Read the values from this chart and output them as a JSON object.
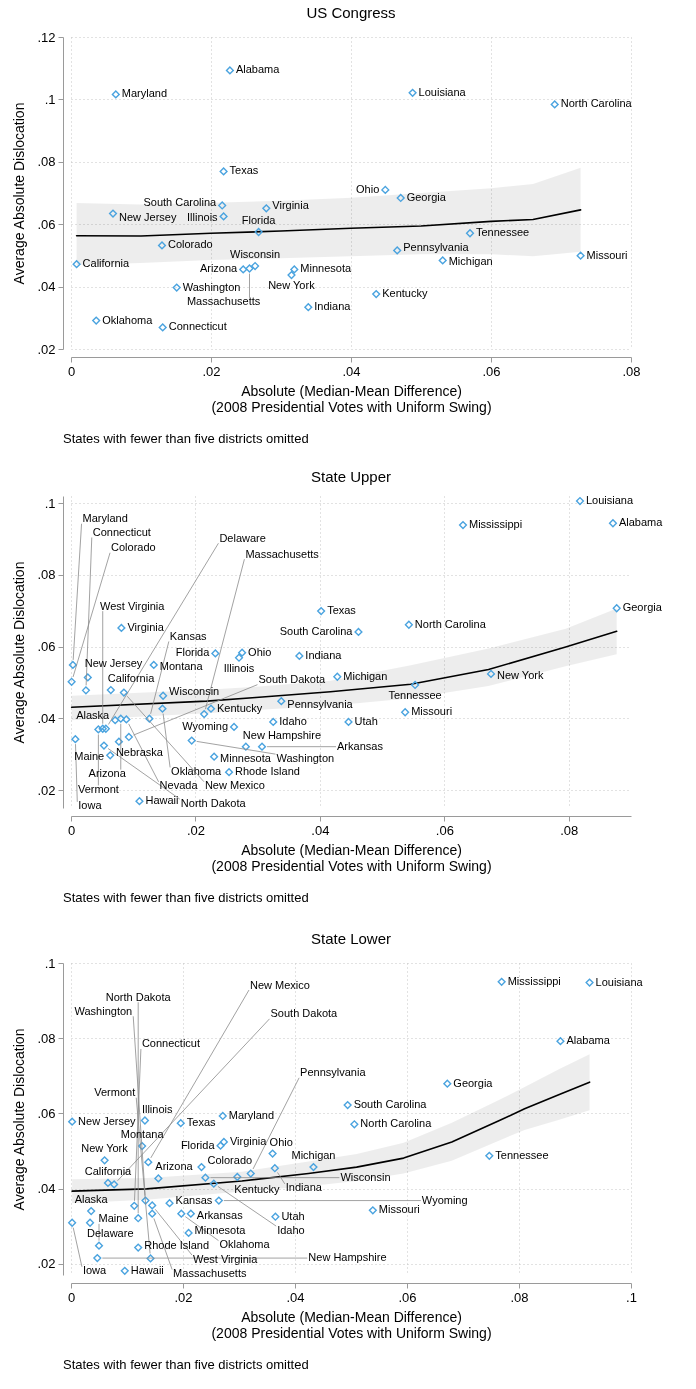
{
  "chart_data": [
    {
      "type": "scatter",
      "title": "US Congress",
      "xlabel": "Absolute (Median-Mean Difference)\n(2008 Presidential Votes with Uniform Swing)",
      "ylabel": "Average Absolute Dislocation",
      "xlim": [
        0,
        0.08
      ],
      "ylim": [
        0.02,
        0.12
      ],
      "xticks": [
        {
          "value": 0,
          "label": "0"
        },
        {
          "value": 0.02,
          "label": ".02"
        },
        {
          "value": 0.04,
          "label": ".04"
        },
        {
          "value": 0.06,
          "label": ".06"
        },
        {
          "value": 0.08,
          "label": ".08"
        }
      ],
      "yticks": [
        {
          "value": 0.02,
          "label": ".02"
        },
        {
          "value": 0.04,
          "label": ".04"
        },
        {
          "value": 0.06,
          "label": ".06"
        },
        {
          "value": 0.08,
          "label": ".08"
        },
        {
          "value": 0.1,
          "label": ".1"
        },
        {
          "value": 0.12,
          "label": ".12"
        }
      ],
      "grid": true,
      "marker": "diamond",
      "series": [
        {
          "color": "#4aa3df",
          "x": [
            0.0227,
            0.0064,
            0.0488,
            0.0691,
            0.0218,
            0.0449,
            0.0471,
            0.0216,
            0.0279,
            0.006,
            0.0218,
            0.0268,
            0.057,
            0.013,
            0.0466,
            0.0728,
            0.0531,
            0.0008,
            0.0263,
            0.0255,
            0.0246,
            0.0319,
            0.0315,
            0.0151,
            0.0436,
            0.0339,
            0.0036,
            0.0131
          ],
          "values": [
            0.1093,
            0.1016,
            0.1021,
            0.0984,
            0.0769,
            0.071,
            0.0684,
            0.066,
            0.0651,
            0.0634,
            0.0625,
            0.0575,
            0.0571,
            0.0532,
            0.0516,
            0.0499,
            0.0484,
            0.0472,
            0.0466,
            0.0458,
            0.0455,
            0.0455,
            0.0437,
            0.0397,
            0.0376,
            0.0334,
            0.0291,
            0.0269
          ]
        },
        {
          "type": "line",
          "color": "#000000",
          "marker": "none",
          "x": [
            0.0008,
            0.01,
            0.02,
            0.03,
            0.04,
            0.05,
            0.06,
            0.066,
            0.0728
          ],
          "values": [
            0.0563,
            0.0562,
            0.0571,
            0.0578,
            0.0587,
            0.0594,
            0.0609,
            0.0615,
            0.0646
          ],
          "lower": [
            0.0469,
            0.0476,
            0.0485,
            0.0491,
            0.0497,
            0.0504,
            0.0504,
            0.0497,
            0.0512
          ],
          "upper": [
            0.0668,
            0.0663,
            0.0669,
            0.0675,
            0.0685,
            0.07,
            0.0715,
            0.0729,
            0.0781
          ]
        }
      ],
      "annotations": [
        {
          "text": "Alabama",
          "x": 0.0227,
          "y": 0.1093
        },
        {
          "text": "Maryland",
          "x": 0.0064,
          "y": 0.1016
        },
        {
          "text": "Louisiana",
          "x": 0.0488,
          "y": 0.1021
        },
        {
          "text": "North Carolina",
          "x": 0.0691,
          "y": 0.0984
        },
        {
          "text": "Texas",
          "x": 0.0218,
          "y": 0.0769
        },
        {
          "text": "Ohio",
          "x": 0.0449,
          "y": 0.071
        },
        {
          "text": "Georgia",
          "x": 0.0471,
          "y": 0.0684
        },
        {
          "text": "South Carolina",
          "x": 0.0216,
          "y": 0.066
        },
        {
          "text": "Virginia",
          "x": 0.0279,
          "y": 0.0651
        },
        {
          "text": "New Jersey",
          "x": 0.006,
          "y": 0.0634
        },
        {
          "text": "Illinois",
          "x": 0.0218,
          "y": 0.0625
        },
        {
          "text": "Florida",
          "x": 0.0268,
          "y": 0.0575
        },
        {
          "text": "Tennessee",
          "x": 0.057,
          "y": 0.0571
        },
        {
          "text": "Colorado",
          "x": 0.013,
          "y": 0.0532
        },
        {
          "text": "Pennsylvania",
          "x": 0.0466,
          "y": 0.0516
        },
        {
          "text": "Missouri",
          "x": 0.0728,
          "y": 0.0499
        },
        {
          "text": "Michigan",
          "x": 0.0531,
          "y": 0.0484
        },
        {
          "text": "California",
          "x": 0.0008,
          "y": 0.0472
        },
        {
          "text": "Wisconsin",
          "x": 0.0263,
          "y": 0.0466
        },
        {
          "text": "Massachusetts",
          "x": 0.0255,
          "y": 0.0458
        },
        {
          "text": "Arizona",
          "x": 0.0246,
          "y": 0.0455
        },
        {
          "text": "Minnesota",
          "x": 0.0319,
          "y": 0.0455
        },
        {
          "text": "New York",
          "x": 0.0315,
          "y": 0.0437
        },
        {
          "text": "Washington",
          "x": 0.0151,
          "y": 0.0397
        },
        {
          "text": "Kentucky",
          "x": 0.0436,
          "y": 0.0376
        },
        {
          "text": "Indiana",
          "x": 0.0339,
          "y": 0.0334
        },
        {
          "text": "Oklahoma",
          "x": 0.0036,
          "y": 0.0291
        },
        {
          "text": "Connecticut",
          "x": 0.0131,
          "y": 0.0269
        },
        "States with fewer than five districts omitted"
      ]
    },
    {
      "type": "scatter",
      "title": "State Upper",
      "xlabel": "Absolute (Median-Mean Difference)\n(2008 Presidential Votes with Uniform Swing)",
      "ylabel": "Average Absolute Dislocation",
      "xlim": [
        0,
        0.09
      ],
      "ylim": [
        0.015,
        0.102
      ],
      "xticks": [
        {
          "value": 0,
          "label": "0"
        },
        {
          "value": 0.02,
          "label": ".02"
        },
        {
          "value": 0.04,
          "label": ".04"
        },
        {
          "value": 0.06,
          "label": ".06"
        },
        {
          "value": 0.08,
          "label": ".08"
        }
      ],
      "yticks": [
        {
          "value": 0.02,
          "label": ".02"
        },
        {
          "value": 0.04,
          "label": ".04"
        },
        {
          "value": 0.06,
          "label": ".06"
        },
        {
          "value": 0.08,
          "label": ".08"
        },
        {
          "value": 0.1,
          "label": ".1"
        }
      ],
      "grid": true,
      "marker": "diamond",
      "series": [
        {
          "color": "#4aa3df",
          "x": [
            0.0818,
            0.0871,
            0.063,
            0.0877,
            0.0402,
            0.0081,
            0.0543,
            0.0462,
            0.0275,
            0.0232,
            0.0367,
            0.027,
            0.0003,
            0.0133,
            0.0675,
            0.0428,
            0.0027,
            0.0001,
            0.0553,
            0.0024,
            0.0064,
            0.0085,
            0.0148,
            0.0338,
            0.0147,
            0.0225,
            0.0537,
            0.0214,
            0.0126,
            0.008,
            0.0071,
            0.0089,
            0.0325,
            0.0446,
            0.0262,
            0.0051,
            0.0044,
            0.0056,
            0.0093,
            0.0007,
            0.0194,
            0.0077,
            0.0053,
            0.0281,
            0.0307,
            0.0063,
            0.023,
            0.0254,
            0.011
          ],
          "values": [
            0.1006,
            0.0944,
            0.0939,
            0.0707,
            0.0699,
            0.0652,
            0.0661,
            0.0641,
            0.0583,
            0.0581,
            0.0574,
            0.0569,
            0.0549,
            0.0549,
            0.0524,
            0.0516,
            0.0514,
            0.0502,
            0.0493,
            0.0478,
            0.0479,
            0.0472,
            0.0463,
            0.0448,
            0.0427,
            0.0427,
            0.0417,
            0.0412,
            0.0399,
            0.0399,
            0.0395,
            0.0397,
            0.039,
            0.039,
            0.0376,
            0.0371,
            0.0369,
            0.0371,
            0.0348,
            0.0342,
            0.0338,
            0.0335,
            0.0324,
            0.0321,
            0.0321,
            0.0297,
            0.0293,
            0.025,
            0.0169
          ]
        },
        {
          "type": "line",
          "color": "#000000",
          "marker": "none",
          "x": [
            0.0001,
            0.0218,
            0.0297,
            0.0417,
            0.0546,
            0.0671,
            0.0795,
            0.0877
          ],
          "values": [
            0.0431,
            0.0448,
            0.0458,
            0.0474,
            0.0495,
            0.0536,
            0.0599,
            0.0643
          ],
          "lower": [
            0.0395,
            0.0414,
            0.0423,
            0.0435,
            0.0456,
            0.049,
            0.0545,
            0.0579
          ],
          "upper": [
            0.0463,
            0.048,
            0.0488,
            0.0505,
            0.0548,
            0.0595,
            0.065,
            0.0706
          ]
        }
      ],
      "annotations": [
        {
          "text": "Louisiana",
          "x": 0.0818,
          "y": 0.1006
        },
        {
          "text": "Alabama",
          "x": 0.0871,
          "y": 0.0944
        },
        {
          "text": "Mississippi",
          "x": 0.063,
          "y": 0.0939
        },
        {
          "text": "Georgia",
          "x": 0.0877,
          "y": 0.0707
        },
        {
          "text": "Texas",
          "x": 0.0402,
          "y": 0.0699
        },
        {
          "text": "Virginia",
          "x": 0.0081,
          "y": 0.0652
        },
        {
          "text": "North Carolina",
          "x": 0.0543,
          "y": 0.0661
        },
        {
          "text": "South Carolina",
          "x": 0.0462,
          "y": 0.0641
        },
        {
          "text": "Ohio",
          "x": 0.0275,
          "y": 0.0583
        },
        {
          "text": "Florida",
          "x": 0.0232,
          "y": 0.0581
        },
        {
          "text": "Indiana",
          "x": 0.0367,
          "y": 0.0574
        },
        {
          "text": "Illinois",
          "x": 0.027,
          "y": 0.0569
        },
        {
          "text": "Maryland",
          "x": 0.0003,
          "y": 0.0549
        },
        {
          "text": "Montana",
          "x": 0.0133,
          "y": 0.0549
        },
        {
          "text": "New York",
          "x": 0.0675,
          "y": 0.0524
        },
        {
          "text": "Michigan",
          "x": 0.0428,
          "y": 0.0516
        },
        {
          "text": "New Jersey",
          "x": 0.0027,
          "y": 0.0514
        },
        {
          "text": "Colorado",
          "x": 0.0001,
          "y": 0.0502
        },
        {
          "text": "Tennessee",
          "x": 0.0553,
          "y": 0.0493
        },
        {
          "text": "Connecticut",
          "x": 0.0024,
          "y": 0.0478
        },
        {
          "text": "California",
          "x": 0.0064,
          "y": 0.0479
        },
        {
          "text": "New Mexico",
          "x": 0.0085,
          "y": 0.0472
        },
        {
          "text": "Wisconsin",
          "x": 0.0148,
          "y": 0.0463
        },
        {
          "text": "Pennsylvania",
          "x": 0.0338,
          "y": 0.0448
        },
        {
          "text": "Oklahoma",
          "x": 0.0147,
          "y": 0.0427
        },
        {
          "text": "Kentucky",
          "x": 0.0225,
          "y": 0.0427
        },
        {
          "text": "Missouri",
          "x": 0.0537,
          "y": 0.0417
        },
        {
          "text": "Massachusetts",
          "x": 0.0214,
          "y": 0.0412
        },
        {
          "text": "Kansas",
          "x": 0.0126,
          "y": 0.0399
        },
        {
          "text": "Arizona",
          "x": 0.008,
          "y": 0.0399
        },
        {
          "text": "Alaska",
          "x": 0.0071,
          "y": 0.0395
        },
        {
          "text": "Nevada",
          "x": 0.0089,
          "y": 0.0397
        },
        {
          "text": "Idaho",
          "x": 0.0325,
          "y": 0.039
        },
        {
          "text": "Utah",
          "x": 0.0446,
          "y": 0.039
        },
        {
          "text": "Wyoming",
          "x": 0.0262,
          "y": 0.0376
        },
        {
          "text": "West Virginia",
          "x": 0.0051,
          "y": 0.0371
        },
        {
          "text": "Vermont",
          "x": 0.0044,
          "y": 0.0369
        },
        {
          "text": "Delaware",
          "x": 0.0056,
          "y": 0.0371
        },
        {
          "text": "South Dakota",
          "x": 0.0093,
          "y": 0.0348
        },
        {
          "text": "Iowa",
          "x": 0.0007,
          "y": 0.0342
        },
        {
          "text": "Washington",
          "x": 0.0194,
          "y": 0.0338
        },
        {
          "text": "Nebraska",
          "x": 0.0077,
          "y": 0.0335
        },
        {
          "text": "North Dakota",
          "x": 0.0053,
          "y": 0.0324
        },
        {
          "text": "New Hampshire",
          "x": 0.0281,
          "y": 0.0321
        },
        {
          "text": "Arkansas",
          "x": 0.0307,
          "y": 0.0321
        },
        {
          "text": "Maine",
          "x": 0.0063,
          "y": 0.0297
        },
        {
          "text": "Minnesota",
          "x": 0.023,
          "y": 0.0293
        },
        {
          "text": "Rhode Island",
          "x": 0.0254,
          "y": 0.025
        },
        {
          "text": "Hawaii",
          "x": 0.011,
          "y": 0.0169
        },
        "States with fewer than five districts omitted"
      ]
    },
    {
      "type": "scatter",
      "title": "State Lower",
      "xlabel": "Absolute (Median-Mean Difference)\n(2008 Presidential Votes with Uniform Swing)",
      "ylabel": "Average Absolute Dislocation",
      "xlim": [
        0,
        0.1
      ],
      "ylim": [
        0.017,
        0.1
      ],
      "xticks": [
        {
          "value": 0,
          "label": "0"
        },
        {
          "value": 0.02,
          "label": ".02"
        },
        {
          "value": 0.04,
          "label": ".04"
        },
        {
          "value": 0.06,
          "label": ".06"
        },
        {
          "value": 0.08,
          "label": ".08"
        },
        {
          "value": 0.1,
          "label": ".1"
        }
      ],
      "yticks": [
        {
          "value": 0.02,
          "label": ".02"
        },
        {
          "value": 0.04,
          "label": ".04"
        },
        {
          "value": 0.06,
          "label": ".06"
        },
        {
          "value": 0.08,
          "label": ".08"
        },
        {
          "value": 0.1,
          "label": ".1"
        }
      ],
      "grid": true,
      "marker": "diamond",
      "series": [
        {
          "color": "#4aa3df",
          "x": [
            0.0769,
            0.0926,
            0.0874,
            0.0672,
            0.0494,
            0.0271,
            0.0132,
            0.0002,
            0.0196,
            0.0506,
            0.0273,
            0.0267,
            0.0127,
            0.036,
            0.0747,
            0.006,
            0.0138,
            0.0233,
            0.0433,
            0.0364,
            0.0321,
            0.0297,
            0.024,
            0.0156,
            0.0066,
            0.0255,
            0.0077,
            0.0133,
            0.0264,
            0.0176,
            0.0113,
            0.0145,
            0.0036,
            0.0539,
            0.0145,
            0.0197,
            0.0214,
            0.0365,
            0.012,
            0.0002,
            0.0034,
            0.021,
            0.005,
            0.012,
            0.0047,
            0.0142,
            0.0096
          ],
          "values": [
            0.095,
            0.0948,
            0.0792,
            0.0679,
            0.0622,
            0.0593,
            0.0581,
            0.0578,
            0.0574,
            0.0571,
            0.0524,
            0.0514,
            0.0513,
            0.0493,
            0.0487,
            0.0475,
            0.047,
            0.0457,
            0.0457,
            0.0454,
            0.044,
            0.0431,
            0.0429,
            0.0427,
            0.0415,
            0.0413,
            0.0411,
            0.0368,
            0.0368,
            0.0361,
            0.0354,
            0.0355,
            0.034,
            0.0342,
            0.0333,
            0.0333,
            0.0333,
            0.0325,
            0.0321,
            0.0309,
            0.0309,
            0.0282,
            0.0248,
            0.0243,
            0.0215,
            0.0214,
            0.0181
          ]
        },
        {
          "type": "line",
          "color": "#000000",
          "marker": "none",
          "x": [
            0.0002,
            0.0135,
            0.0305,
            0.0424,
            0.051,
            0.0594,
            0.068,
            0.0765,
            0.081,
            0.0872,
            0.0926
          ],
          "values": [
            0.0393,
            0.0399,
            0.042,
            0.044,
            0.0457,
            0.0481,
            0.0524,
            0.0581,
            0.0612,
            0.065,
            0.0683
          ],
          "lower": [
            0.0361,
            0.037,
            0.0392,
            0.0406,
            0.042,
            0.044,
            0.0474,
            0.0528,
            0.0556,
            0.0583,
            0.0608
          ],
          "upper": [
            0.0425,
            0.0428,
            0.0445,
            0.0472,
            0.0492,
            0.0522,
            0.0575,
            0.0636,
            0.067,
            0.0718,
            0.0757
          ]
        }
      ],
      "annotations": [
        {
          "text": "Mississippi",
          "x": 0.0769,
          "y": 0.095
        },
        {
          "text": "Louisiana",
          "x": 0.0926,
          "y": 0.0948
        },
        {
          "text": "Alabama",
          "x": 0.0874,
          "y": 0.0792
        },
        {
          "text": "Georgia",
          "x": 0.0672,
          "y": 0.0679
        },
        {
          "text": "South Carolina",
          "x": 0.0494,
          "y": 0.0622
        },
        {
          "text": "Maryland",
          "x": 0.0271,
          "y": 0.0593
        },
        {
          "text": "Illinois",
          "x": 0.0132,
          "y": 0.0581
        },
        {
          "text": "New Jersey",
          "x": 0.0002,
          "y": 0.0578
        },
        {
          "text": "Texas",
          "x": 0.0196,
          "y": 0.0574
        },
        {
          "text": "North Carolina",
          "x": 0.0506,
          "y": 0.0571
        },
        {
          "text": "Virginia",
          "x": 0.0273,
          "y": 0.0524
        },
        {
          "text": "Florida",
          "x": 0.0267,
          "y": 0.0514
        },
        {
          "text": "Montana",
          "x": 0.0127,
          "y": 0.0513
        },
        {
          "text": "Ohio",
          "x": 0.036,
          "y": 0.0493
        },
        {
          "text": "Tennessee",
          "x": 0.0747,
          "y": 0.0487
        },
        {
          "text": "New York",
          "x": 0.006,
          "y": 0.0475
        },
        {
          "text": "New Mexico",
          "x": 0.0138,
          "y": 0.047
        },
        {
          "text": "Colorado",
          "x": 0.0233,
          "y": 0.0457
        },
        {
          "text": "Michigan",
          "x": 0.0433,
          "y": 0.0457
        },
        {
          "text": "Indiana",
          "x": 0.0364,
          "y": 0.0454
        },
        {
          "text": "Pennsylvania",
          "x": 0.0321,
          "y": 0.044
        },
        {
          "text": "Kentucky",
          "x": 0.0297,
          "y": 0.0431
        },
        {
          "text": "Wisconsin",
          "x": 0.024,
          "y": 0.0429
        },
        {
          "text": "Arizona",
          "x": 0.0156,
          "y": 0.0427
        },
        {
          "text": "California",
          "x": 0.0066,
          "y": 0.0415
        },
        {
          "text": "Idaho",
          "x": 0.0255,
          "y": 0.0413
        },
        {
          "text": "South Dakota",
          "x": 0.0077,
          "y": 0.0411
        },
        {
          "text": "Washington",
          "x": 0.0133,
          "y": 0.0368
        },
        {
          "text": "Wyoming",
          "x": 0.0264,
          "y": 0.0368
        },
        {
          "text": "Kansas",
          "x": 0.0176,
          "y": 0.0361
        },
        {
          "text": "Connecticut",
          "x": 0.0113,
          "y": 0.0354
        },
        {
          "text": "West Virginia",
          "x": 0.0145,
          "y": 0.0355
        },
        {
          "text": "Alaska",
          "x": 0.0036,
          "y": 0.034
        },
        {
          "text": "Missouri",
          "x": 0.0539,
          "y": 0.0342
        },
        {
          "text": "Massachusetts",
          "x": 0.0145,
          "y": 0.0333
        },
        {
          "text": "Oklahoma",
          "x": 0.0197,
          "y": 0.0333
        },
        {
          "text": "Arkansas",
          "x": 0.0214,
          "y": 0.0333
        },
        {
          "text": "Utah",
          "x": 0.0365,
          "y": 0.0325
        },
        {
          "text": "North Dakota",
          "x": 0.012,
          "y": 0.0321
        },
        {
          "text": "Iowa",
          "x": 0.0002,
          "y": 0.0309
        },
        {
          "text": "Delaware",
          "x": 0.0034,
          "y": 0.0309
        },
        {
          "text": "Minnesota",
          "x": 0.021,
          "y": 0.0282
        },
        {
          "text": "Maine",
          "x": 0.005,
          "y": 0.0248
        },
        {
          "text": "Rhode Island",
          "x": 0.012,
          "y": 0.0243
        },
        {
          "text": "New Hampshire",
          "x": 0.0047,
          "y": 0.0215
        },
        {
          "text": "Vermont",
          "x": 0.0142,
          "y": 0.0214
        },
        {
          "text": "Hawaii",
          "x": 0.0096,
          "y": 0.0181
        },
        "States with fewer than five districts omitted"
      ]
    }
  ]
}
